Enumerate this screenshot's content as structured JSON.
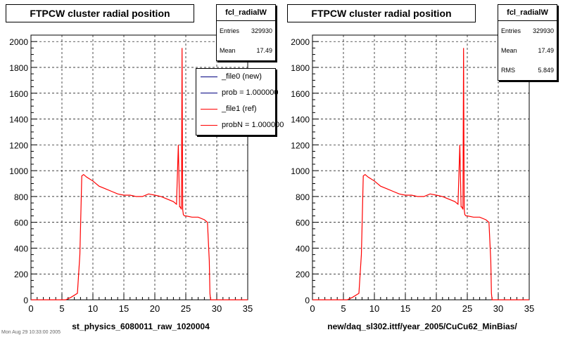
{
  "panels": [
    {
      "title": "FTPCW cluster radial position",
      "stats": {
        "name": "fcl_radialW",
        "rows": [
          {
            "label": "Entries",
            "value": "329930"
          },
          {
            "label": "Mean",
            "value": "17.49"
          }
        ]
      },
      "xcaption": "st_physics_6080011_raw_1020004",
      "legend": [
        {
          "label": "_file0 (new)",
          "color": "#000080"
        },
        {
          "label": "prob = 1.000000",
          "color": "#000080"
        },
        {
          "label": "_file1 (ref)",
          "color": "#ff0000"
        },
        {
          "label": "probN = 1.000000",
          "color": "#ff0000"
        }
      ]
    },
    {
      "title": "FTPCW cluster radial position",
      "stats": {
        "name": "fcl_radialW",
        "rows": [
          {
            "label": "Entries",
            "value": "329930"
          },
          {
            "label": "Mean",
            "value": "17.49"
          },
          {
            "label": "RMS",
            "value": "5.849"
          }
        ]
      },
      "xcaption": "new/daq_sl302.ittf/year_2005/CuCu62_MinBias/",
      "legend": []
    }
  ],
  "footer_text": "Mon Aug 29 10:33:00 2005",
  "chart_data": [
    {
      "type": "line",
      "title": "FTPCW cluster radial position",
      "xlabel": "st_physics_6080011_raw_1020004",
      "ylabel": "",
      "xlim": [
        0,
        35
      ],
      "ylim": [
        0,
        2050
      ],
      "xticks": [
        0,
        5,
        10,
        15,
        20,
        25,
        30,
        35
      ],
      "yticks": [
        0,
        200,
        400,
        600,
        800,
        1000,
        1200,
        1400,
        1600,
        1800,
        2000
      ],
      "grid": true,
      "legend_position": "top-right",
      "series": [
        {
          "name": "_file1 (ref)",
          "color": "#ff0000",
          "x": [
            0,
            5.6,
            6.5,
            7.5,
            7.9,
            8.2,
            8.5,
            9,
            10,
            11,
            12,
            13,
            14,
            15,
            16,
            17,
            18,
            19,
            20,
            21,
            22,
            23,
            23.5,
            23.8,
            24.0,
            24.1,
            24.3,
            24.4,
            24.5,
            24.6,
            24.8,
            25,
            26,
            27,
            28,
            28.5,
            28.8,
            28.9,
            29.0,
            35
          ],
          "y": [
            0,
            0,
            20,
            50,
            350,
            960,
            970,
            950,
            920,
            880,
            860,
            840,
            820,
            810,
            810,
            800,
            800,
            820,
            810,
            800,
            780,
            760,
            740,
            1200,
            720,
            720,
            700,
            1950,
            700,
            660,
            650,
            650,
            640,
            640,
            620,
            600,
            300,
            50,
            0,
            0
          ]
        }
      ]
    },
    {
      "type": "line",
      "title": "FTPCW cluster radial position",
      "xlabel": "new/daq_sl302.ittf/year_2005/CuCu62_MinBias/",
      "ylabel": "",
      "xlim": [
        0,
        35
      ],
      "ylim": [
        0,
        2050
      ],
      "xticks": [
        0,
        5,
        10,
        15,
        20,
        25,
        30,
        35
      ],
      "yticks": [
        0,
        200,
        400,
        600,
        800,
        1000,
        1200,
        1400,
        1600,
        1800,
        2000
      ],
      "grid": true,
      "series": [
        {
          "name": "",
          "color": "#ff0000",
          "x": [
            0,
            5.6,
            6.5,
            7.5,
            7.9,
            8.2,
            8.5,
            9,
            10,
            11,
            12,
            13,
            14,
            15,
            16,
            17,
            18,
            19,
            20,
            21,
            22,
            23,
            23.5,
            23.8,
            24.0,
            24.1,
            24.3,
            24.4,
            24.5,
            24.6,
            24.8,
            25,
            26,
            27,
            28,
            28.5,
            28.8,
            28.9,
            29.0,
            35
          ],
          "y": [
            0,
            0,
            20,
            50,
            350,
            960,
            970,
            950,
            920,
            880,
            860,
            840,
            820,
            810,
            810,
            800,
            800,
            820,
            810,
            800,
            780,
            760,
            740,
            1200,
            720,
            720,
            700,
            1950,
            700,
            660,
            650,
            650,
            640,
            640,
            620,
            600,
            300,
            50,
            0,
            0
          ]
        }
      ]
    }
  ]
}
